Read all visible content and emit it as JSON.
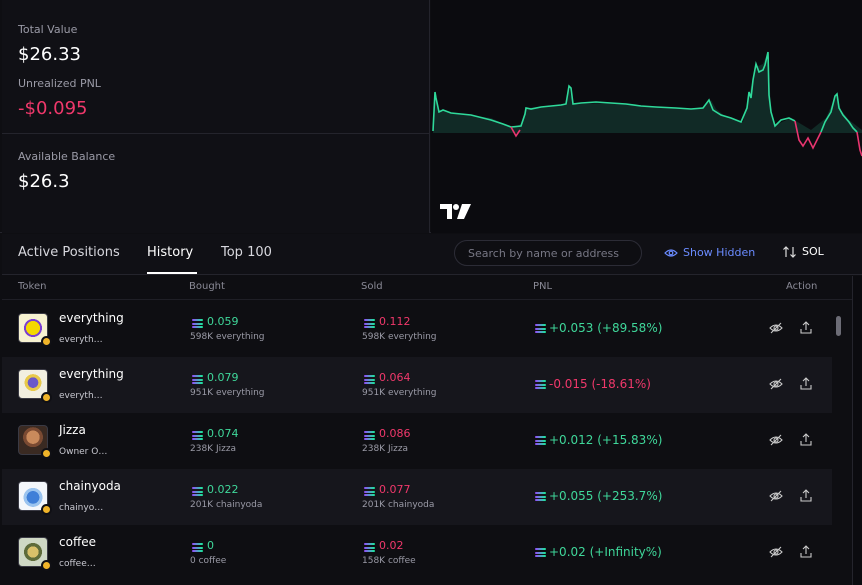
{
  "summary": {
    "total_value_label": "Total Value",
    "total_value": "$26.33",
    "unrealized_pnl_label": "Unrealized PNL",
    "unrealized_pnl": "-$0.095",
    "available_balance_label": "Available Balance",
    "available_balance": "$26.3"
  },
  "chart": {
    "logo_text": "TV",
    "colors": {
      "up": "#2fd99a",
      "down": "#e8356f",
      "fill": "#13302a"
    }
  },
  "tabs": [
    {
      "label": "Active Positions"
    },
    {
      "label": "History"
    },
    {
      "label": "Top 100"
    }
  ],
  "search": {
    "placeholder": "Search by name or address"
  },
  "show_hidden_label": "Show Hidden",
  "sort_label": "SOL",
  "table": {
    "headers": [
      "Token",
      "Bought",
      "Sold",
      "PNL",
      "Action"
    ],
    "rows": [
      {
        "name": "everything",
        "sub": "everyth…",
        "bought": "0.059",
        "bought_sub": "598K everything",
        "sold": "0.112",
        "sold_sub": "598K everything",
        "pnl": "+0.053 (+89.58%)",
        "pnl_dir": "pos"
      },
      {
        "name": "everything",
        "sub": "everyth…",
        "bought": "0.079",
        "bought_sub": "951K everything",
        "sold": "0.064",
        "sold_sub": "951K everything",
        "pnl": "-0.015 (-18.61%)",
        "pnl_dir": "neg"
      },
      {
        "name": "Jizza",
        "sub": "Owner O…",
        "bought": "0.074",
        "bought_sub": "238K Jizza",
        "sold": "0.086",
        "sold_sub": "238K Jizza",
        "pnl": "+0.012 (+15.83%)",
        "pnl_dir": "pos"
      },
      {
        "name": "chainyoda",
        "sub": "chainyo…",
        "bought": "0.022",
        "bought_sub": "201K chainyoda",
        "sold": "0.077",
        "sold_sub": "201K chainyoda",
        "pnl": "+0.055 (+253.7%)",
        "pnl_dir": "pos"
      },
      {
        "name": "coffee",
        "sub": "coffee…",
        "bought": "0",
        "bought_sub": "0 coffee",
        "sold": "0.02",
        "sold_sub": "158K coffee",
        "pnl": "+0.02 (+Infinity%)",
        "pnl_dir": "pos"
      }
    ]
  }
}
